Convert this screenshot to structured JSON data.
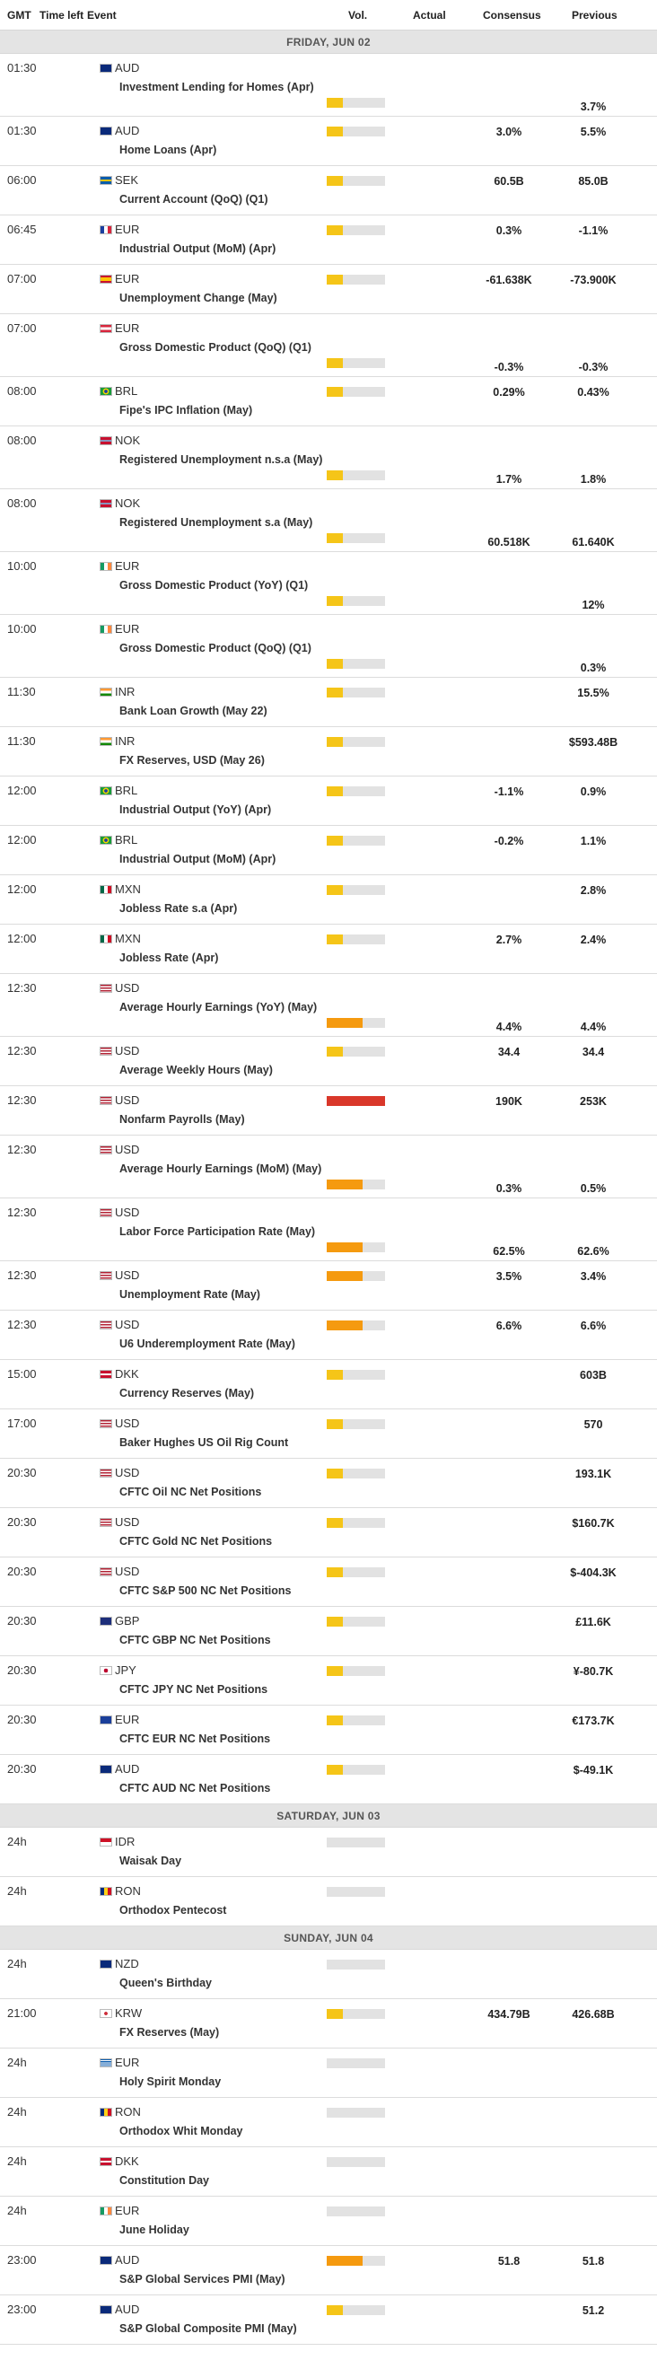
{
  "columns": {
    "gmt": "GMT",
    "time_left": "Time left",
    "event": "Event",
    "vol": "Vol.",
    "actual": "Actual",
    "consensus": "Consensus",
    "previous": "Previous"
  },
  "colors": {
    "low": "#f5c518",
    "medium": "#f59a0f",
    "high": "#d9372a",
    "empty": "#e2e2e2"
  },
  "groups": [
    {
      "day": "FRIDAY, JUN 02",
      "events": [
        {
          "time": "01:30",
          "currency": "AUD",
          "flag": "au",
          "name": "Investment Lending for Homes (Apr)",
          "vol": "low",
          "consensus": "",
          "previous": "3.7%",
          "tall": true
        },
        {
          "time": "01:30",
          "currency": "AUD",
          "flag": "au",
          "name": "Home Loans (Apr)",
          "vol": "low",
          "consensus": "3.0%",
          "previous": "5.5%"
        },
        {
          "time": "06:00",
          "currency": "SEK",
          "flag": "se",
          "name": "Current Account (QoQ) (Q1)",
          "vol": "low",
          "consensus": "60.5B",
          "previous": "85.0B"
        },
        {
          "time": "06:45",
          "currency": "EUR",
          "flag": "fr",
          "name": "Industrial Output (MoM) (Apr)",
          "vol": "low",
          "consensus": "0.3%",
          "previous": "-1.1%"
        },
        {
          "time": "07:00",
          "currency": "EUR",
          "flag": "es",
          "name": "Unemployment Change (May)",
          "vol": "low",
          "consensus": "-61.638K",
          "previous": "-73.900K"
        },
        {
          "time": "07:00",
          "currency": "EUR",
          "flag": "at",
          "name": "Gross Domestic Product (QoQ) (Q1)",
          "vol": "low",
          "consensus": "-0.3%",
          "previous": "-0.3%",
          "tall": true
        },
        {
          "time": "08:00",
          "currency": "BRL",
          "flag": "br",
          "name": "Fipe's IPC Inflation (May)",
          "vol": "low",
          "consensus": "0.29%",
          "previous": "0.43%"
        },
        {
          "time": "08:00",
          "currency": "NOK",
          "flag": "no",
          "name": "Registered Unemployment n.s.a (May)",
          "vol": "low",
          "consensus": "1.7%",
          "previous": "1.8%",
          "tall": true
        },
        {
          "time": "08:00",
          "currency": "NOK",
          "flag": "no",
          "name": "Registered Unemployment s.a (May)",
          "vol": "low",
          "consensus": "60.518K",
          "previous": "61.640K",
          "tall": true
        },
        {
          "time": "10:00",
          "currency": "EUR",
          "flag": "ie",
          "name": "Gross Domestic Product (YoY) (Q1)",
          "vol": "low",
          "consensus": "",
          "previous": "12%",
          "tall": true
        },
        {
          "time": "10:00",
          "currency": "EUR",
          "flag": "ie",
          "name": "Gross Domestic Product (QoQ) (Q1)",
          "vol": "low",
          "consensus": "",
          "previous": "0.3%",
          "tall": true
        },
        {
          "time": "11:30",
          "currency": "INR",
          "flag": "in",
          "name": "Bank Loan Growth (May 22)",
          "vol": "low",
          "consensus": "",
          "previous": "15.5%"
        },
        {
          "time": "11:30",
          "currency": "INR",
          "flag": "in",
          "name": "FX Reserves, USD (May 26)",
          "vol": "low",
          "consensus": "",
          "previous": "$593.48B"
        },
        {
          "time": "12:00",
          "currency": "BRL",
          "flag": "br",
          "name": "Industrial Output (YoY) (Apr)",
          "vol": "low",
          "consensus": "-1.1%",
          "previous": "0.9%"
        },
        {
          "time": "12:00",
          "currency": "BRL",
          "flag": "br",
          "name": "Industrial Output (MoM) (Apr)",
          "vol": "low",
          "consensus": "-0.2%",
          "previous": "1.1%"
        },
        {
          "time": "12:00",
          "currency": "MXN",
          "flag": "mx",
          "name": "Jobless Rate s.a (Apr)",
          "vol": "low",
          "consensus": "",
          "previous": "2.8%"
        },
        {
          "time": "12:00",
          "currency": "MXN",
          "flag": "mx",
          "name": "Jobless Rate (Apr)",
          "vol": "low",
          "consensus": "2.7%",
          "previous": "2.4%"
        },
        {
          "time": "12:30",
          "currency": "USD",
          "flag": "us",
          "name": "Average Hourly Earnings (YoY) (May)",
          "vol": "medium",
          "consensus": "4.4%",
          "previous": "4.4%",
          "tall": true
        },
        {
          "time": "12:30",
          "currency": "USD",
          "flag": "us",
          "name": "Average Weekly Hours (May)",
          "vol": "low",
          "consensus": "34.4",
          "previous": "34.4"
        },
        {
          "time": "12:30",
          "currency": "USD",
          "flag": "us",
          "name": "Nonfarm Payrolls (May)",
          "vol": "high",
          "consensus": "190K",
          "previous": "253K"
        },
        {
          "time": "12:30",
          "currency": "USD",
          "flag": "us",
          "name": "Average Hourly Earnings (MoM) (May)",
          "vol": "medium",
          "consensus": "0.3%",
          "previous": "0.5%",
          "tall": true
        },
        {
          "time": "12:30",
          "currency": "USD",
          "flag": "us",
          "name": "Labor Force Participation Rate (May)",
          "vol": "medium",
          "consensus": "62.5%",
          "previous": "62.6%",
          "tall": true
        },
        {
          "time": "12:30",
          "currency": "USD",
          "flag": "us",
          "name": "Unemployment Rate (May)",
          "vol": "medium",
          "consensus": "3.5%",
          "previous": "3.4%"
        },
        {
          "time": "12:30",
          "currency": "USD",
          "flag": "us",
          "name": "U6 Underemployment Rate (May)",
          "vol": "medium",
          "consensus": "6.6%",
          "previous": "6.6%"
        },
        {
          "time": "15:00",
          "currency": "DKK",
          "flag": "dk",
          "name": "Currency Reserves (May)",
          "vol": "low",
          "consensus": "",
          "previous": "603B"
        },
        {
          "time": "17:00",
          "currency": "USD",
          "flag": "us",
          "name": "Baker Hughes US Oil Rig Count",
          "vol": "low",
          "consensus": "",
          "previous": "570"
        },
        {
          "time": "20:30",
          "currency": "USD",
          "flag": "us",
          "name": "CFTC Oil NC Net Positions",
          "vol": "low",
          "consensus": "",
          "previous": "193.1K"
        },
        {
          "time": "20:30",
          "currency": "USD",
          "flag": "us",
          "name": "CFTC Gold NC Net Positions",
          "vol": "low",
          "consensus": "",
          "previous": "$160.7K"
        },
        {
          "time": "20:30",
          "currency": "USD",
          "flag": "us",
          "name": "CFTC S&P 500 NC Net Positions",
          "vol": "low",
          "consensus": "",
          "previous": "$-404.3K"
        },
        {
          "time": "20:30",
          "currency": "GBP",
          "flag": "gb",
          "name": "CFTC GBP NC Net Positions",
          "vol": "low",
          "consensus": "",
          "previous": "£11.6K"
        },
        {
          "time": "20:30",
          "currency": "JPY",
          "flag": "jp",
          "name": "CFTC JPY NC Net Positions",
          "vol": "low",
          "consensus": "",
          "previous": "¥-80.7K"
        },
        {
          "time": "20:30",
          "currency": "EUR",
          "flag": "eu",
          "name": "CFTC EUR NC Net Positions",
          "vol": "low",
          "consensus": "",
          "previous": "€173.7K"
        },
        {
          "time": "20:30",
          "currency": "AUD",
          "flag": "au",
          "name": "CFTC AUD NC Net Positions",
          "vol": "low",
          "consensus": "",
          "previous": "$-49.1K"
        }
      ]
    },
    {
      "day": "SATURDAY, JUN 03",
      "events": [
        {
          "time": "24h",
          "currency": "IDR",
          "flag": "id",
          "name": "Waisak Day",
          "vol": "none",
          "consensus": "",
          "previous": ""
        },
        {
          "time": "24h",
          "currency": "RON",
          "flag": "ro",
          "name": "Orthodox Pentecost",
          "vol": "none",
          "consensus": "",
          "previous": ""
        }
      ]
    },
    {
      "day": "SUNDAY, JUN 04",
      "events": [
        {
          "time": "24h",
          "currency": "NZD",
          "flag": "nz",
          "name": "Queen's Birthday",
          "vol": "none",
          "consensus": "",
          "previous": ""
        },
        {
          "time": "21:00",
          "currency": "KRW",
          "flag": "kr",
          "name": "FX Reserves (May)",
          "vol": "low",
          "consensus": "434.79B",
          "previous": "426.68B"
        },
        {
          "time": "24h",
          "currency": "EUR",
          "flag": "gr",
          "name": "Holy Spirit Monday",
          "vol": "none",
          "consensus": "",
          "previous": ""
        },
        {
          "time": "24h",
          "currency": "RON",
          "flag": "ro",
          "name": "Orthodox Whit Monday",
          "vol": "none",
          "consensus": "",
          "previous": ""
        },
        {
          "time": "24h",
          "currency": "DKK",
          "flag": "dk",
          "name": "Constitution Day",
          "vol": "none",
          "consensus": "",
          "previous": ""
        },
        {
          "time": "24h",
          "currency": "EUR",
          "flag": "ie",
          "name": "June Holiday",
          "vol": "none",
          "consensus": "",
          "previous": ""
        },
        {
          "time": "23:00",
          "currency": "AUD",
          "flag": "au",
          "name": "S&P Global Services PMI (May)",
          "vol": "medium",
          "consensus": "51.8",
          "previous": "51.8"
        },
        {
          "time": "23:00",
          "currency": "AUD",
          "flag": "au",
          "name": "S&P Global Composite PMI (May)",
          "vol": "low",
          "consensus": "",
          "previous": "51.2"
        }
      ]
    }
  ]
}
